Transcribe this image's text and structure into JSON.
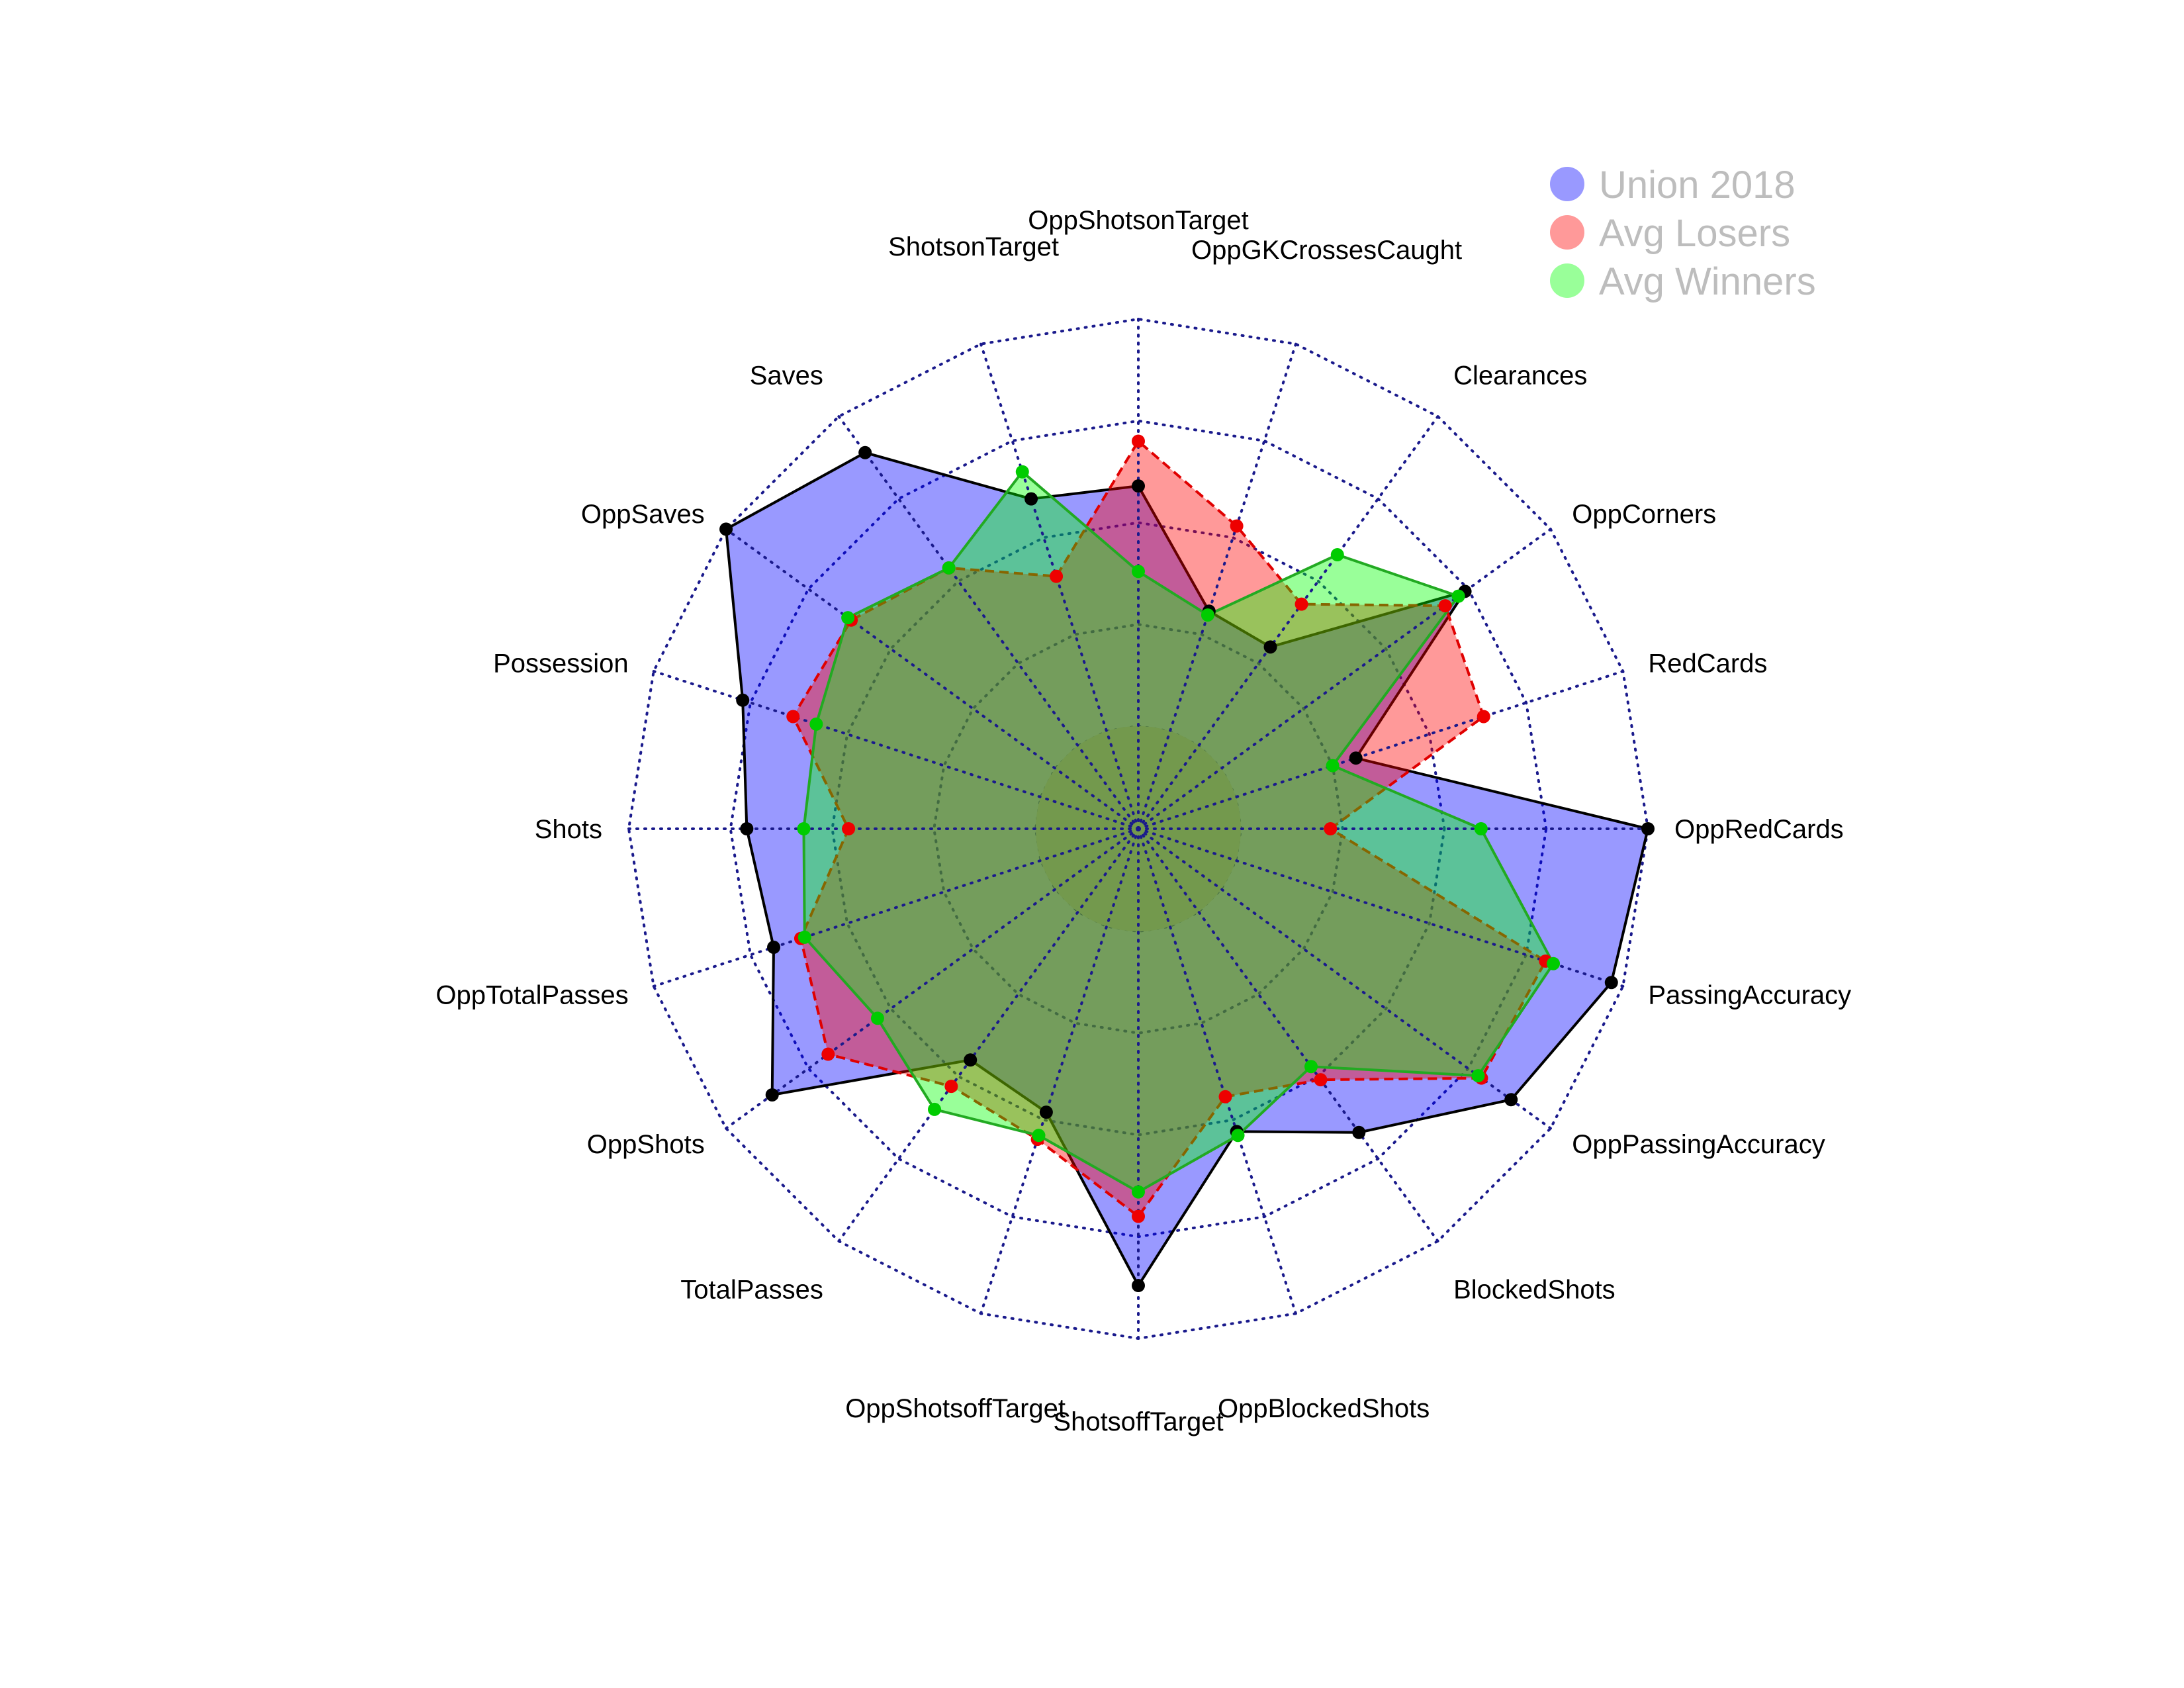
{
  "chart_data": {
    "type": "radar",
    "title": "",
    "axes": [
      "OppRedCards",
      "RedCards",
      "OppCorners",
      "Clearances",
      "OppGKCrossesCaught",
      "OppShotsonTarget",
      "ShotsonTarget",
      "Saves",
      "OppSaves",
      "Possession",
      "Shots",
      "OppTotalPasses",
      "OppShots",
      "TotalPasses",
      "OppShotsoffTarget",
      "ShotsoffTarget",
      "OppBlockedShots",
      "BlockedShots",
      "OppPassingAccuracy",
      "PassingAccuracy"
    ],
    "range": [
      0,
      1
    ],
    "rings": 5,
    "center_fill": true,
    "series": [
      {
        "name": "Union 2018",
        "fill": "#0000ff",
        "fill_opacity": 0.4,
        "line_color": "#000000",
        "line_style": "solid",
        "point_color": "#000000",
        "values": [
          1.0,
          0.31,
          0.74,
          0.3,
          0.31,
          0.59,
          0.6,
          0.89,
          1.0,
          0.77,
          0.71,
          0.69,
          0.86,
          0.45,
          0.48,
          0.87,
          0.53,
          0.67,
          0.88,
          0.97
        ]
      },
      {
        "name": "Avg Losers",
        "fill": "#ff0000",
        "fill_opacity": 0.4,
        "line_color": "#e00000",
        "line_style": "dashed",
        "point_color": "#ee0000",
        "values": [
          0.22,
          0.64,
          0.68,
          0.43,
          0.53,
          0.7,
          0.4,
          0.54,
          0.62,
          0.64,
          0.46,
          0.62,
          0.69,
          0.53,
          0.55,
          0.7,
          0.44,
          0.51,
          0.79,
          0.8
        ]
      },
      {
        "name": "Avg Winners",
        "fill": "#00ff00",
        "fill_opacity": 0.4,
        "line_color": "#22aa22",
        "line_style": "solid",
        "point_color": "#00cc00",
        "values": [
          0.59,
          0.25,
          0.72,
          0.58,
          0.3,
          0.38,
          0.67,
          0.54,
          0.63,
          0.58,
          0.57,
          0.61,
          0.54,
          0.6,
          0.54,
          0.64,
          0.54,
          0.47,
          0.78,
          0.82
        ]
      }
    ],
    "legend": {
      "position": "top-right",
      "entries": [
        {
          "label": "Union 2018",
          "color": "#9999ff"
        },
        {
          "label": "Avg Losers",
          "color": "#ff9999"
        },
        {
          "label": "Avg Winners",
          "color": "#99ff99"
        }
      ]
    },
    "center_color": "#73994d",
    "grid_color": "#1a1a8c"
  }
}
